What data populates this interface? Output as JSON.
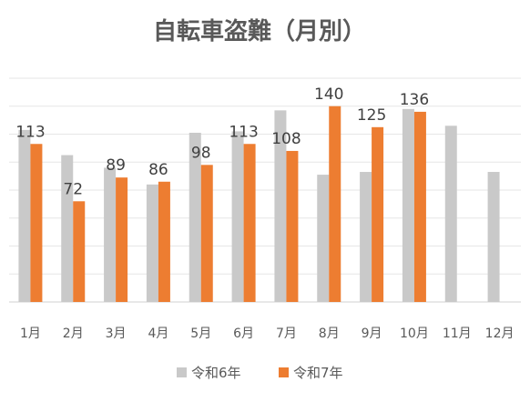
{
  "chart_data": {
    "type": "bar",
    "title": "自転車盗難（月別）",
    "categories": [
      "1月",
      "2月",
      "3月",
      "4月",
      "5月",
      "6月",
      "7月",
      "8月",
      "9月",
      "10月",
      "11月",
      "12月"
    ],
    "series": [
      {
        "name": "令和6年",
        "color": "#c9c9c9",
        "values": [
          123,
          105,
          96,
          84,
          121,
          122,
          137,
          91,
          93,
          138,
          126,
          93
        ]
      },
      {
        "name": "令和7年",
        "color": "#ed7d31",
        "values": [
          113,
          72,
          89,
          86,
          98,
          113,
          108,
          140,
          125,
          136,
          null,
          null
        ]
      }
    ],
    "data_labels_series": "令和7年",
    "ylim": [
      0,
      160
    ],
    "grid": true,
    "legend_position": "bottom"
  }
}
